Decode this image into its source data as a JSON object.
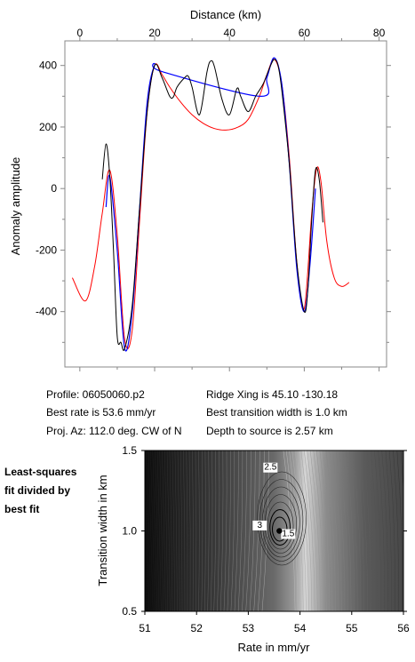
{
  "top_plot": {
    "x_title": "Distance (km)",
    "y_title": "Anomaly amplitude",
    "x_ticks": [
      0,
      20,
      40,
      60,
      80
    ],
    "y_ticks": [
      400,
      200,
      0,
      -200,
      -400
    ],
    "xlim": [
      -4,
      82
    ],
    "ylim": [
      -580,
      480
    ]
  },
  "info": {
    "profile": "Profile: 06050060.p2",
    "best_rate": "Best rate is 53.6 mm/yr",
    "proj_az": "Proj. Az: 112.0 deg. CW of N",
    "ridge_xing": "Ridge Xing is 45.10 -130.18",
    "best_width": "Best transition width is 1.0 km",
    "depth": "Depth to source is   2.57 km"
  },
  "side_label": {
    "line1": "Least-squares",
    "line2": "fit divided by",
    "line3": "best fit"
  },
  "bottom_plot": {
    "x_title": "Rate in mm/yr",
    "y_title": "Transition width in km",
    "x_ticks": [
      "51",
      "52",
      "53",
      "54",
      "55",
      "56"
    ],
    "y_ticks": [
      "1.5",
      "1.0",
      "0.5"
    ],
    "xlim": [
      51,
      56
    ],
    "ylim": [
      0.5,
      1.5
    ],
    "contour_labels": [
      "2.5",
      "3",
      "1.5"
    ],
    "best_fit": {
      "rate": 53.6,
      "width": 1.0
    }
  },
  "chart_data": [
    {
      "type": "line",
      "xlabel": "Distance (km)",
      "ylabel": "Anomaly amplitude",
      "xlim": [
        -4,
        82
      ],
      "ylim": [
        -580,
        480
      ],
      "series": [
        {
          "color": "#ff0000",
          "x": [
            -2,
            1.5,
            4,
            6,
            8,
            10,
            12,
            14,
            16,
            18,
            20,
            22,
            24,
            27,
            30,
            33,
            36,
            39,
            42,
            45,
            48,
            50,
            52,
            54,
            56,
            58,
            60,
            62,
            63.3,
            64.5,
            66,
            68,
            70,
            72
          ],
          "y": [
            -290,
            -365,
            -250,
            -80,
            60,
            -150,
            -490,
            -460,
            -100,
            250,
            400,
            370,
            330,
            280,
            240,
            212,
            195,
            190,
            198,
            225,
            300,
            370,
            420,
            340,
            100,
            -240,
            -390,
            -80,
            65,
            20,
            -170,
            -290,
            -318,
            -305
          ]
        },
        {
          "color": "#0000ff",
          "x": [
            7,
            8,
            10,
            12,
            14,
            16,
            18,
            20,
            22,
            48,
            50,
            52,
            54,
            56,
            58,
            60,
            61.5,
            63
          ],
          "y": [
            -60,
            40,
            -200,
            -520,
            -400,
            -60,
            280,
            400,
            380,
            300,
            360,
            425,
            340,
            80,
            -260,
            -400,
            -250,
            0
          ]
        },
        {
          "color": "#000000",
          "x": [
            6,
            7,
            8,
            9,
            10,
            11,
            12,
            14,
            16,
            18,
            20,
            22,
            24,
            25,
            26,
            28,
            29,
            30,
            32,
            34,
            35,
            36,
            38,
            40,
            42,
            43,
            45,
            47,
            49,
            51,
            52,
            53,
            54,
            56,
            58,
            60,
            61,
            62,
            63,
            64,
            65
          ],
          "y": [
            30,
            145,
            40,
            -200,
            -480,
            -500,
            -520,
            -380,
            -60,
            250,
            400,
            360,
            300,
            298,
            330,
            360,
            365,
            330,
            240,
            380,
            415,
            395,
            290,
            240,
            325,
            300,
            250,
            300,
            340,
            400,
            420,
            400,
            320,
            80,
            -240,
            -400,
            -320,
            -100,
            60,
            30,
            -110
          ]
        }
      ]
    },
    {
      "type": "heatmap",
      "xlabel": "Rate in mm/yr",
      "ylabel": "Transition width in km",
      "xlim": [
        51,
        56
      ],
      "ylim": [
        0.5,
        1.5
      ],
      "contour_labels": [
        2.5,
        3,
        1.5
      ],
      "best_fit": {
        "rate": 53.6,
        "width": 1.0
      }
    }
  ]
}
